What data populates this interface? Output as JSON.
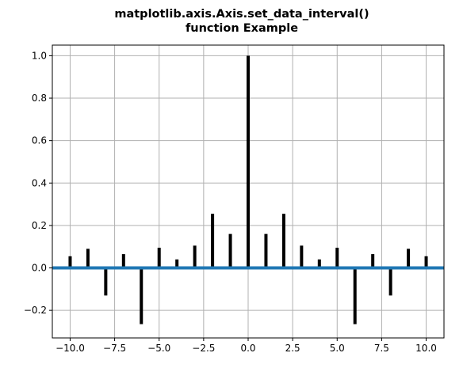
{
  "chart_data": {
    "type": "bar",
    "title_lines": [
      "matplotlib.axis.Axis.set_data_interval()",
      "function Example"
    ],
    "xlabel": "",
    "ylabel": "",
    "xlim": [
      -11.0,
      11.0
    ],
    "ylim": [
      -0.33,
      1.05
    ],
    "grid": true,
    "x": [
      -10,
      -9,
      -8,
      -7,
      -6,
      -5,
      -4,
      -3,
      -2,
      -1,
      0,
      1,
      2,
      3,
      4,
      5,
      6,
      7,
      8,
      9,
      10
    ],
    "values": [
      0.055,
      0.09,
      -0.13,
      0.065,
      -0.265,
      0.095,
      0.04,
      0.105,
      0.255,
      0.16,
      1.0,
      0.16,
      0.255,
      0.105,
      0.04,
      0.095,
      -0.265,
      0.065,
      -0.13,
      0.09,
      0.055
    ],
    "xticks": [
      -10.0,
      -7.5,
      -5.0,
      -2.5,
      0.0,
      2.5,
      5.0,
      7.5,
      10.0
    ],
    "xtick_labels": [
      "−10.0",
      "−7.5",
      "−5.0",
      "−2.5",
      "0.0",
      "2.5",
      "5.0",
      "7.5",
      "10.0"
    ],
    "yticks": [
      -0.2,
      0.0,
      0.2,
      0.4,
      0.6,
      0.8,
      1.0
    ],
    "ytick_labels": [
      "−0.2",
      "0.0",
      "0.2",
      "0.4",
      "0.6",
      "0.8",
      "1.0"
    ],
    "baseline": 0.0,
    "bar_color": "#000000",
    "baseline_color": "#1f77b4"
  }
}
